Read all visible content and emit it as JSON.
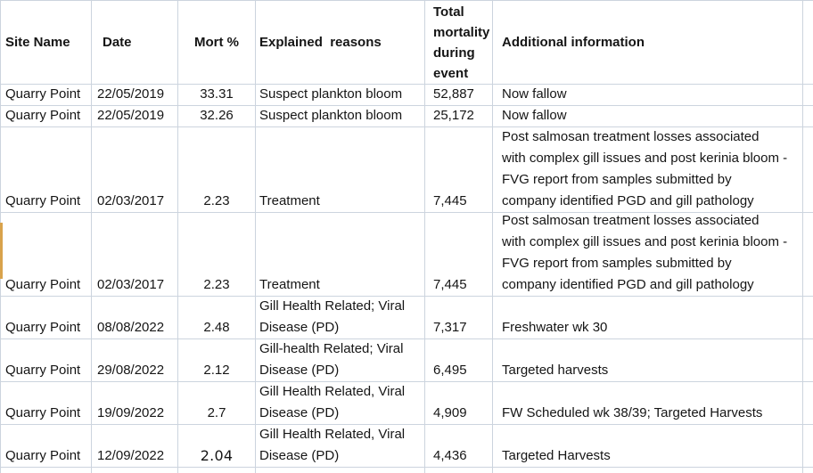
{
  "table": {
    "headers": [
      {
        "key": "site",
        "label": "Site Name"
      },
      {
        "key": "date",
        "label": "Date"
      },
      {
        "key": "mort",
        "label": "Mort %"
      },
      {
        "key": "reasons",
        "label": "Explained  reasons"
      },
      {
        "key": "total",
        "label": "Total mortality during event",
        "wrap": true
      },
      {
        "key": "info",
        "label": "Additional information"
      }
    ],
    "rows": [
      {
        "site": "Quarry Point",
        "date": "22/05/2019",
        "mort": "33.31",
        "reasons": [
          "Suspect plankton bloom"
        ],
        "total": "52,887",
        "info": [
          "Now fallow"
        ]
      },
      {
        "site": "Quarry Point",
        "date": "22/05/2019",
        "mort": "32.26",
        "reasons": [
          "Suspect plankton bloom"
        ],
        "total": "25,172",
        "info": [
          "Now fallow"
        ]
      },
      {
        "site": "Quarry Point",
        "date": "02/03/2017",
        "mort": "2.23",
        "reasons": [
          "Treatment"
        ],
        "total": "7,445",
        "info": [
          "Post salmosan treatment losses associated",
          "with complex gill issues and post kerinia bloom -",
          "FVG report from samples submitted by",
          "company identified PGD and gill pathology"
        ]
      },
      {
        "site": "Quarry Point",
        "date": "02/03/2017",
        "mort": "2.23",
        "reasons": [
          "Treatment"
        ],
        "total": "7,445",
        "info": [
          "Post salmosan treatment losses associated",
          "with complex gill issues and post kerinia bloom -",
          "FVG report from samples submitted by",
          "company identified PGD and gill pathology"
        ]
      },
      {
        "site": "Quarry Point",
        "date": "08/08/2022",
        "mort": "2.48",
        "reasons": [
          "Gill Health Related; Viral",
          "Disease (PD)"
        ],
        "total": "7,317",
        "info": [
          "Freshwater wk 30"
        ]
      },
      {
        "site": "Quarry Point",
        "date": "29/08/2022",
        "mort": "2.12",
        "reasons": [
          "Gill-health Related; Viral",
          "Disease (PD)"
        ],
        "total": "6,495",
        "info": [
          "Targeted harvests"
        ]
      },
      {
        "site": "Quarry Point",
        "date": "19/09/2022",
        "mort": "2.7",
        "reasons": [
          "Gill Health Related, Viral",
          "Disease (PD)"
        ],
        "total": "4,909",
        "info": [
          "FW Scheduled wk 38/39; Targeted Harvests"
        ]
      },
      {
        "site": "Quarry Point",
        "date": "12/09/2022",
        "mort": "2.04",
        "mort_alt_font": true,
        "reasons": [
          "Gill Health Related, Viral",
          "Disease (PD)"
        ],
        "total": "4,436",
        "info": [
          "Targeted Harvests"
        ]
      }
    ],
    "accent_strip_color": "#d9a34c"
  }
}
